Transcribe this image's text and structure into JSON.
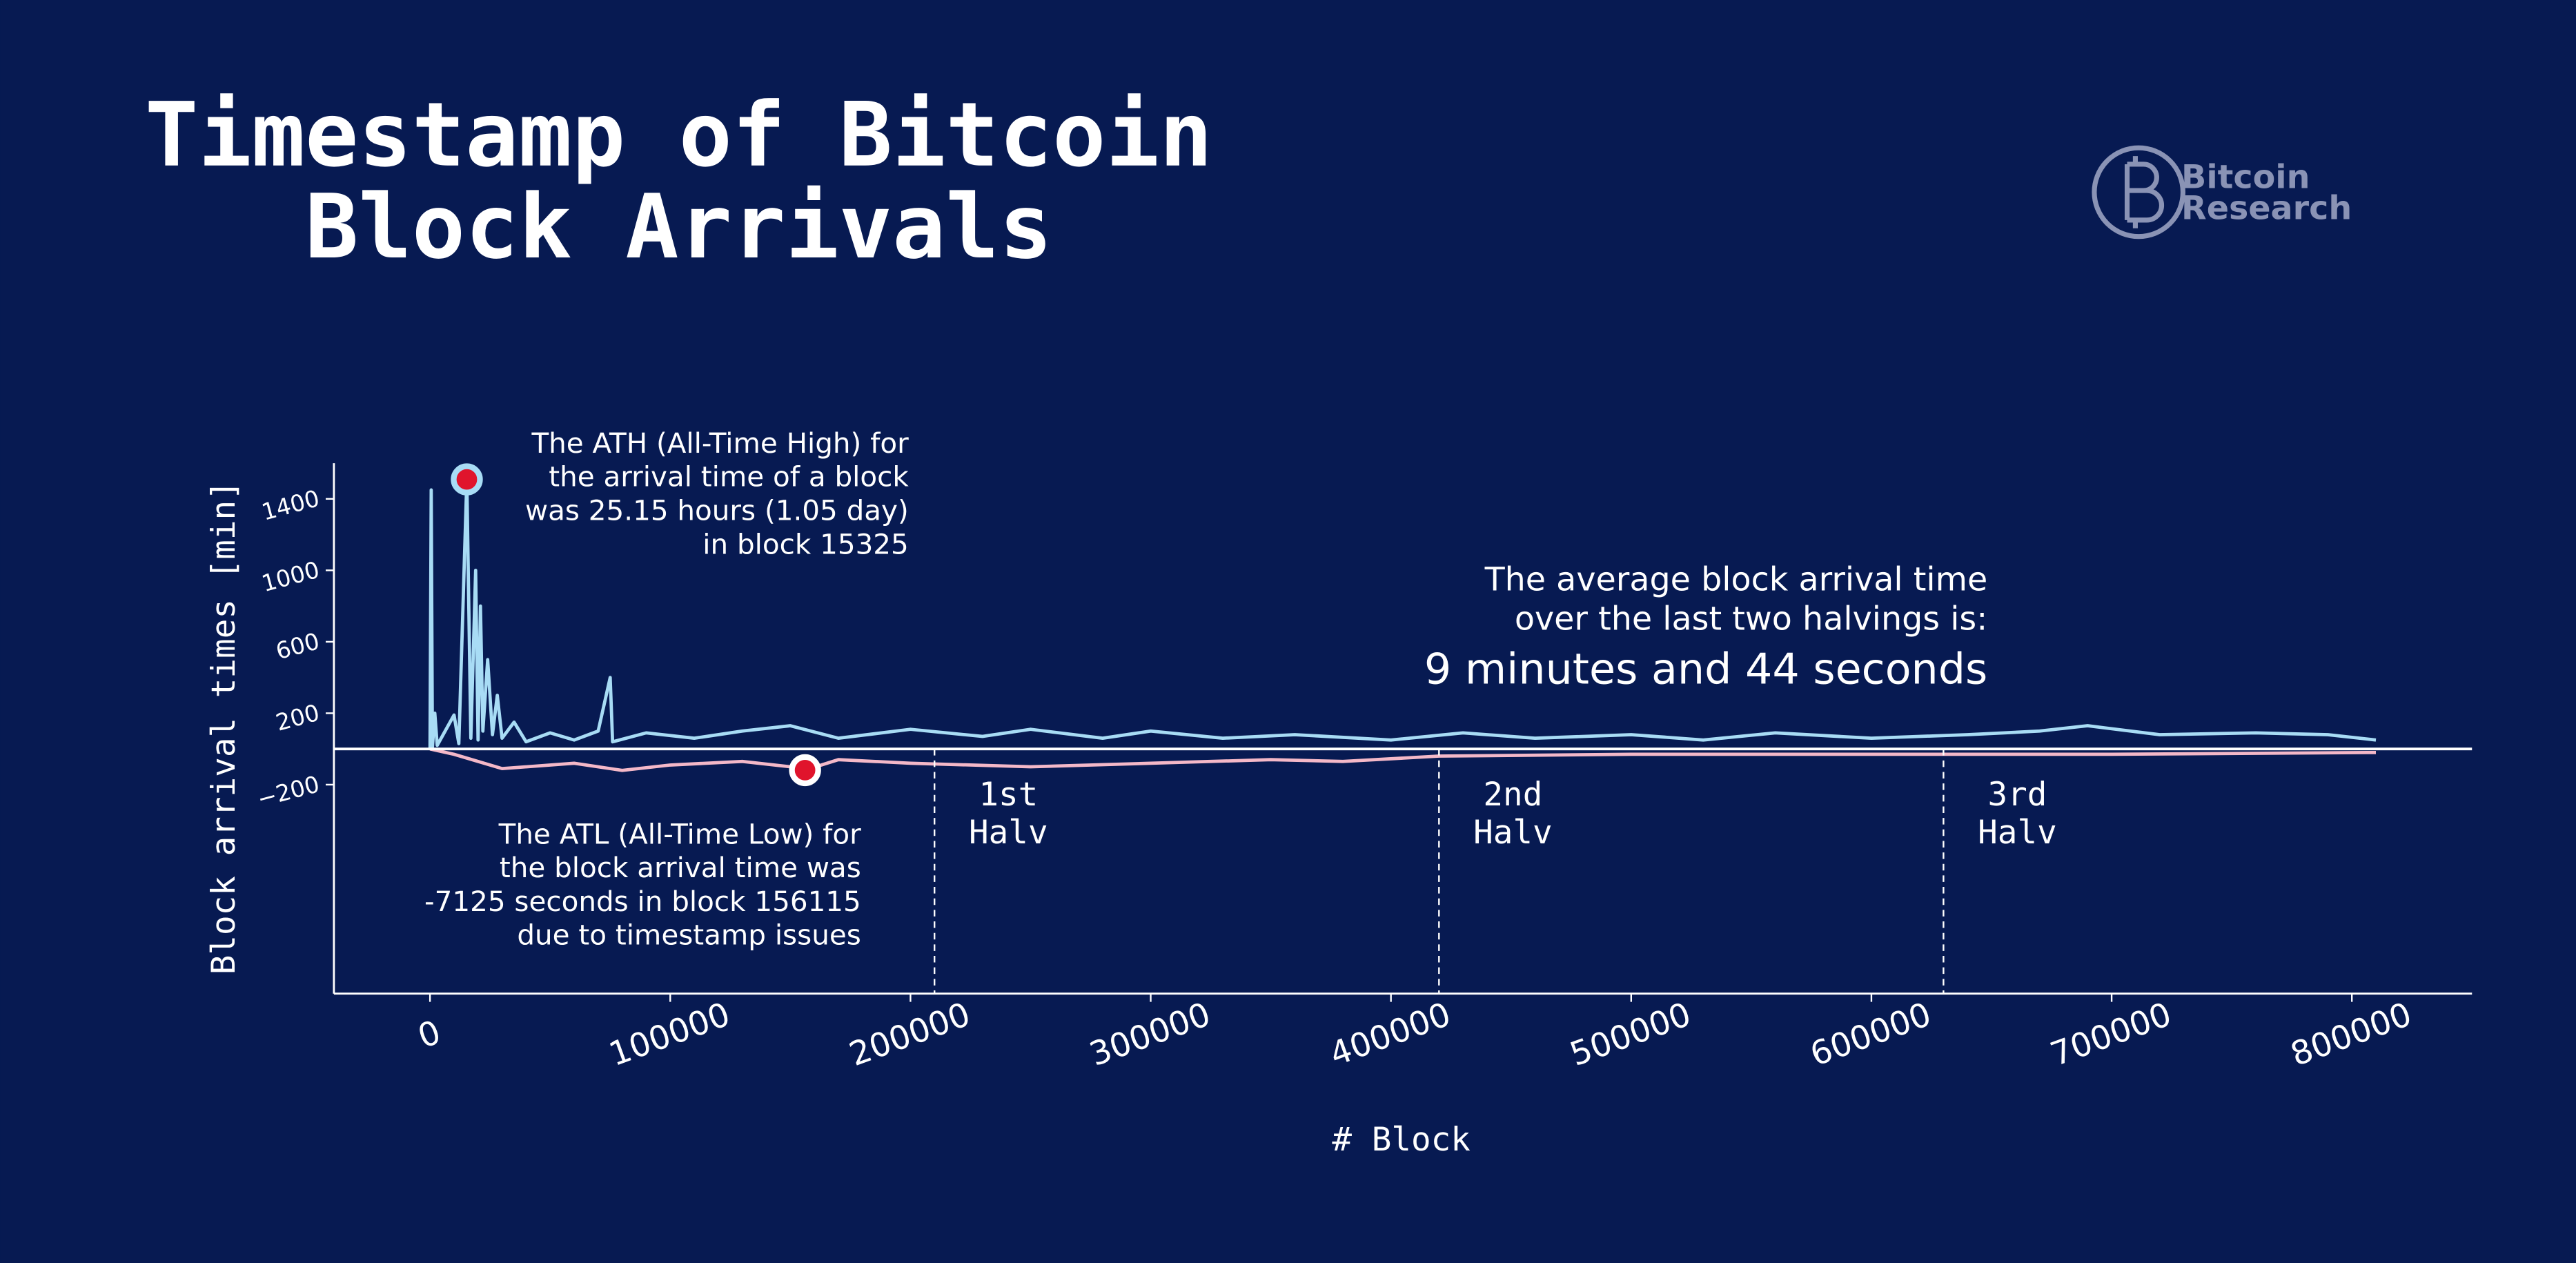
{
  "chart_data": {
    "type": "line",
    "title": [
      "Timestamp of Bitcoin",
      "Block Arrivals"
    ],
    "logo": [
      "Bitcoin",
      "Research"
    ],
    "xlabel": "# Block",
    "ylabel": "Block arrival times [min]",
    "xlim": [
      -40000,
      850000
    ],
    "ylim": [
      -1370,
      1600
    ],
    "xticks": [
      0,
      100000,
      200000,
      300000,
      400000,
      500000,
      600000,
      700000,
      800000
    ],
    "yticks": [
      {
        "value": -200,
        "label": "−200"
      },
      200,
      600,
      1000,
      1400
    ],
    "series": [
      {
        "color": "#a8dcf5",
        "x": [
          0,
          500,
          1000,
          2000,
          3000,
          10000,
          12000,
          15325,
          17000,
          19000,
          20000,
          21000,
          22000,
          24000,
          26000,
          28000,
          30000,
          35000,
          40000,
          50000,
          60000,
          70000,
          75000,
          76000,
          90000,
          110000,
          130000,
          150000,
          170000,
          200000,
          230000,
          250000,
          280000,
          300000,
          330000,
          360000,
          400000,
          430000,
          460000,
          500000,
          530000,
          560000,
          600000,
          640000,
          670000,
          690000,
          720000,
          760000,
          790000,
          810000
        ],
        "values": [
          0,
          1450,
          10,
          200,
          20,
          190,
          30,
          1509,
          60,
          1000,
          50,
          800,
          100,
          500,
          80,
          300,
          60,
          150,
          40,
          90,
          50,
          100,
          400,
          40,
          90,
          60,
          100,
          130,
          60,
          110,
          70,
          110,
          60,
          100,
          60,
          80,
          50,
          90,
          60,
          80,
          50,
          90,
          60,
          80,
          100,
          130,
          80,
          90,
          80,
          50
        ]
      },
      {
        "color": "#f4b8c8",
        "x": [
          0,
          10000,
          30000,
          60000,
          80000,
          100000,
          130000,
          150000,
          156115,
          170000,
          200000,
          250000,
          300000,
          350000,
          380000,
          420000,
          500000,
          600000,
          700000,
          810000
        ],
        "values": [
          0,
          -30,
          -110,
          -80,
          -120,
          -90,
          -70,
          -100,
          -118.75,
          -60,
          -80,
          -100,
          -80,
          -60,
          -70,
          -40,
          -30,
          -30,
          -30,
          -20
        ]
      }
    ],
    "vlines": [
      {
        "x": 210000,
        "label": [
          "1st",
          "Halv"
        ]
      },
      {
        "x": 420000,
        "label": [
          "2nd",
          "Halv"
        ]
      },
      {
        "x": 630000,
        "label": [
          "3rd",
          "Halv"
        ]
      }
    ],
    "annotations": [
      {
        "x": 15325,
        "y": 1509,
        "text": [
          "The ATH (All-Time High) for",
          "the arrival time of a block",
          "was 25.15 hours (1.05 day)",
          "in block 15325"
        ]
      },
      {
        "x": 156115,
        "y": -118.75,
        "text": [
          "The ATL (All-Time Low) for",
          "the block arrival time was",
          "-7125 seconds in block 156115",
          "due to timestamp issues"
        ]
      }
    ],
    "average_note": [
      "The average block arrival time",
      "over the last two halvings is:",
      "9 minutes and 44 seconds"
    ]
  }
}
